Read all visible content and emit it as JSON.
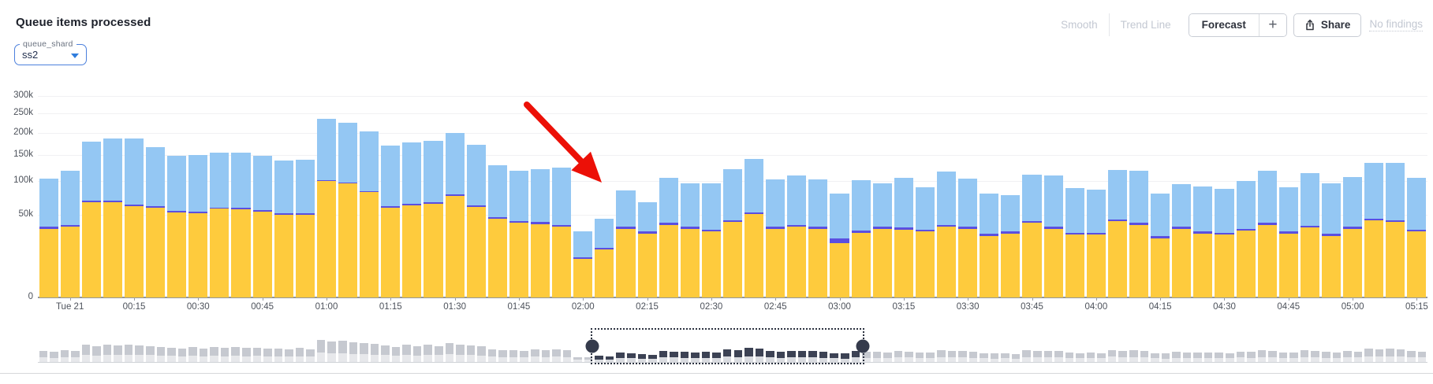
{
  "header": {
    "title": "Queue items processed",
    "controls": {
      "smooth": "Smooth",
      "trend_line": "Trend Line",
      "forecast": "Forecast",
      "plus": "+",
      "share": "Share",
      "no_findings": "No findings"
    }
  },
  "filter": {
    "label": "queue_shard",
    "value": "ss2",
    "accent_color": "#4c80dd"
  },
  "chart_data": {
    "type": "bar",
    "stacked": true,
    "y_scale": "sqrt",
    "grid": true,
    "ylim": [
      0,
      310000
    ],
    "y_tick_labels": [
      "300k",
      "250k",
      "200k",
      "150k",
      "100k",
      "50k",
      "0"
    ],
    "y_tick_values": [
      300000,
      250000,
      200000,
      150000,
      100000,
      50000,
      0
    ],
    "x_tick_labels": [
      "Tue 21",
      "00:15",
      "00:30",
      "00:45",
      "01:00",
      "01:15",
      "01:30",
      "01:45",
      "02:00",
      "02:15",
      "02:30",
      "02:45",
      "03:00",
      "03:15",
      "03:30",
      "03:45",
      "04:00",
      "04:15",
      "04:30",
      "04:45",
      "05:00",
      "05:15"
    ],
    "bar_interval_minutes": 5,
    "series": [
      {
        "name": "yellow-segment",
        "color": "#FECB3D",
        "values": [
          35000,
          37000,
          67000,
          67000,
          62000,
          60000,
          53000,
          52000,
          58000,
          57000,
          54000,
          50000,
          50000,
          100000,
          96000,
          82000,
          60000,
          63000,
          65000,
          76000,
          61000,
          46000,
          41000,
          40000,
          37000,
          11000,
          17000,
          35000,
          30000,
          39000,
          35000,
          32000,
          42000,
          51000,
          35000,
          37000,
          35000,
          22000,
          31000,
          35000,
          34000,
          32000,
          37000,
          35000,
          28000,
          30000,
          41000,
          35000,
          29000,
          29000,
          43000,
          39000,
          26000,
          35000,
          30000,
          29000,
          33000,
          39000,
          30000,
          36000,
          28000,
          35000,
          44000,
          42000,
          32000
        ]
      },
      {
        "name": "purple-segment",
        "color": "#5B4FE0",
        "values": [
          2000,
          2000,
          2000,
          2000,
          2000,
          2000,
          2000,
          2000,
          2000,
          2000,
          2000,
          2000,
          2000,
          2000,
          2000,
          2000,
          2000,
          2000,
          2000,
          2000,
          2000,
          2000,
          2000,
          2000,
          2000,
          1000,
          1000,
          2000,
          2000,
          2000,
          2000,
          2000,
          2000,
          2000,
          2000,
          2000,
          2000,
          4000,
          2000,
          2000,
          2000,
          2000,
          2000,
          2000,
          2000,
          2000,
          2000,
          2000,
          2000,
          2000,
          2000,
          2000,
          2000,
          2000,
          2000,
          2000,
          2000,
          2000,
          2000,
          2000,
          2000,
          2000,
          2000,
          2000,
          2000
        ]
      },
      {
        "name": "blue-segment",
        "color": "#94C7F3",
        "values": [
          67000,
          80000,
          110000,
          118000,
          123000,
          105000,
          93000,
          96000,
          95000,
          96000,
          92000,
          87000,
          88000,
          134000,
          128000,
          120000,
          109000,
          113000,
          114000,
          122000,
          110000,
          81000,
          76000,
          80000,
          86000,
          20000,
          28000,
          48000,
          35000,
          65000,
          59000,
          62000,
          78000,
          89000,
          66000,
          71000,
          66000,
          54000,
          69000,
          59000,
          70000,
          56000,
          78000,
          67000,
          50000,
          45000,
          68000,
          73000,
          57000,
          55000,
          75000,
          78000,
          52000,
          58000,
          59000,
          56000,
          65000,
          78000,
          58000,
          76000,
          66000,
          70000,
          88000,
          90000,
          72000
        ]
      }
    ],
    "annotation": {
      "type": "arrow",
      "color": "#EC1007",
      "points_at": "dip near 02:00"
    }
  },
  "minimap": {
    "selection_start_pct": 39.8,
    "selection_end_pct": 59.5,
    "bar_color": "#c6c9d0",
    "bar_color_light": "#e7e8eb",
    "selected_bar_color": "#3c4254",
    "selected_bar_color_light": "#d9dbe0"
  }
}
